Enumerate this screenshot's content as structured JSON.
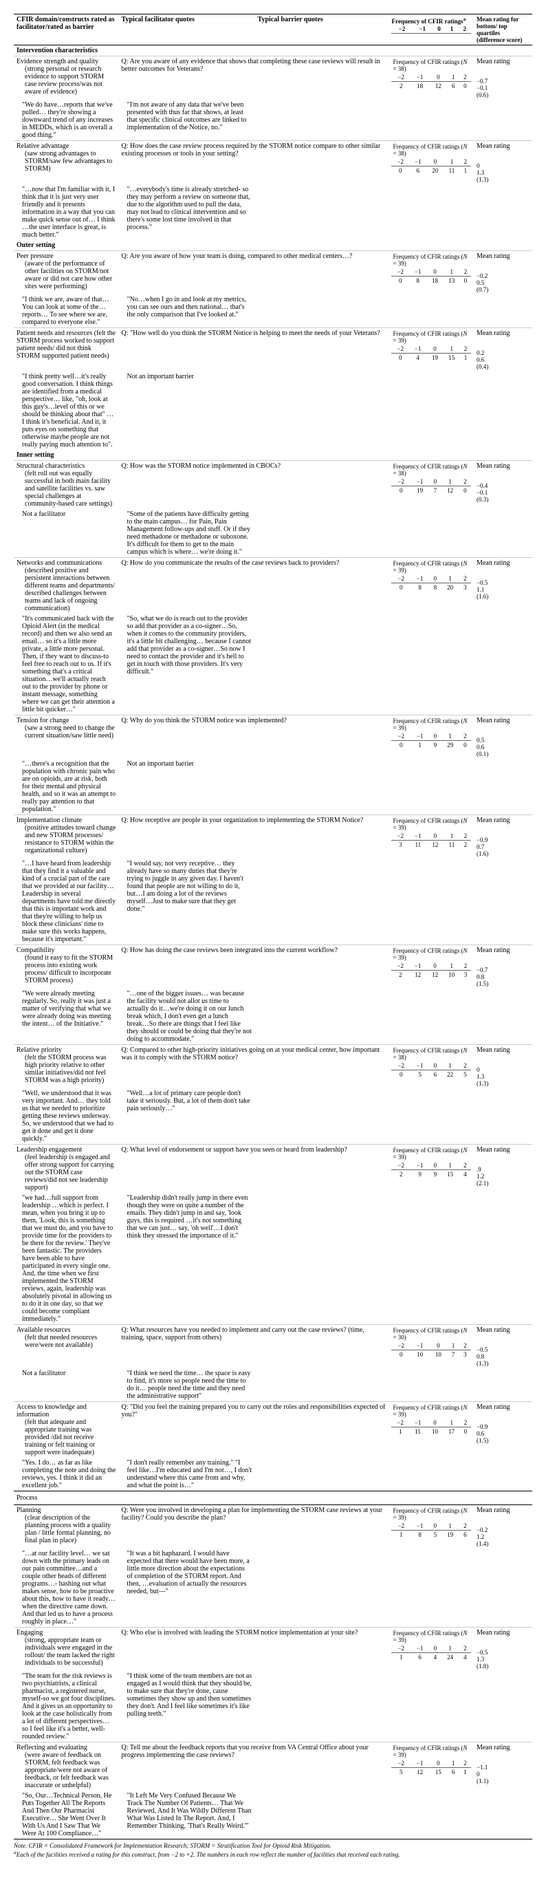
{
  "headers": {
    "c1": "CFIR domain/constructs rated as facilitator/rated as barrier",
    "c2": "Typical facilitator quotes",
    "c3": "Typical barrier quotes",
    "freq_title": "Frequency of CFIR ratings",
    "freq_sup": "a",
    "mean_title": "Mean rating for bottom/ top quartiles (difference score)",
    "scale": [
      "−2",
      "−1",
      "0",
      "1",
      "2"
    ]
  },
  "note": {
    "line1": "Note. CFIR = Consolidated Framework for Implementation Research; STORM = Stratification Tool for Opioid Risk Mitigation.",
    "line2_sup": "a",
    "line2": "Each of the facilities received a rating for this construct, from −2 to +2. The numbers in each row reflect the number of facilities that received each rating."
  },
  "sections": [
    {
      "title": "Intervention characteristics",
      "rows": [
        {
          "name": "Evidence strength and quality",
          "sub": "(strong personal or research evidence to support STORM case review process/was not aware of evidence)",
          "question": "Q: Are you aware of any evidence that shows that completing these case reviews will result in better outcomes for Veterans?",
          "fac": "\"We do have…reports that we've pulled… they're showing a downward trend of any increases in MEDDs, which is an overall a good thing.\"",
          "bar": "\"I'm not aware of any data that we've been presented with thus far that shows, at least that specific clinical outcomes are linked to implementation of the Notice, no.\"",
          "n": 38,
          "freq": [
            2,
            18,
            12,
            6,
            0
          ],
          "means": [
            "−0.7",
            "−0.1",
            "(0.6)"
          ]
        },
        {
          "name": "Relative advantage",
          "sub": "(saw strong advantages to STORM/saw few advantages to STORM)",
          "question": "Q: How does the case review process required by the STORM notice compare to other similar existing processes or tools in your setting?",
          "fac": "\"…now that I'm familiar with it, I think that it is just very user friendly and it presents information in a way that you can make quick sense out of… I think …the user interface is great, is much better.\"",
          "bar": "\"…everybody's time is already stretched- so they may perform a review on someone that, due to the algorithm used to pull the data, may not lead to clinical intervention and so there's some lost time involved in that process.\"",
          "n": 38,
          "freq": [
            0,
            6,
            20,
            11,
            1
          ],
          "means": [
            "0",
            "1.3",
            "(1.3)"
          ]
        }
      ]
    },
    {
      "title": "Outer setting",
      "rows": [
        {
          "name": "Peer pressure",
          "sub": "(aware of the performance of other facilities on STORM/not aware or did not care how other sites were performing)",
          "question": "Q: Are you aware of how your team is doing, compared to other medical centers…?",
          "fac": "\"I think we are, aware of that… You can look at some of the… reports… To see where we are, compared to everyone else.\"",
          "bar": "\"No…when I go in and look at my metrics, you can see ours and then national… that's the only comparison that I've looked at.\"",
          "n": 39,
          "freq": [
            0,
            8,
            18,
            13,
            0
          ],
          "means": [
            "−0.2",
            "0.5",
            "(0.7)"
          ]
        },
        {
          "name": "Patient needs and resources (felt the STORM process worked to support patient needs/ did not think STORM supported patient needs)",
          "sub": "",
          "question": "Q: \"How well do you think the STORM Notice is helping to meet the needs of your Veterans?",
          "fac": "\"I think pretty well…it's really good conversation. I think things are identified from a medical perspective… like, \"oh, look at this guy's…level of this or we should be thinking about that\" …I think it's beneficial. And it, it puts eyes on something that otherwise maybe people are not really paying much attention to\".",
          "bar": "Not an important barrier",
          "n": 39,
          "freq": [
            0,
            4,
            19,
            15,
            1
          ],
          "means": [
            "0.2",
            "0.6",
            "(0.4)"
          ]
        }
      ]
    },
    {
      "title": "Inner setting",
      "rows": [
        {
          "name": "Structural characteristics",
          "sub": "(felt roll out was equally successful in both main facility and satellite facilities vs. saw special challenges at community-based care settings)",
          "question": "Q: How was the STORM notice implemented in CBOCs?",
          "fac": "Not a facilitator",
          "bar": "\"Some of the patients have difficulty getting to the main campus… for Pain, Pain Management follow-ups and stuff. Or if they need methadone or methadone or suboxone. It's difficult for them to get to the main campus which is where… we're doing it.\"",
          "n": 38,
          "freq": [
            0,
            19,
            7,
            12,
            0
          ],
          "means": [
            "−0.4",
            "−0.1",
            "(0.3)"
          ]
        },
        {
          "name": "Networks and communications",
          "sub": "(described positive and persistent interactions between different teams and departments/ described challenges between teams and lack of ongoing communication)",
          "question": "Q: How do you communicate the results of the case reviews back to providers?",
          "fac": "\"It's communicated back with the Opioid Alert (in the medical record) and then we also send an email… so it's a little more private, a little more personal. Then, if they want to discuss-to feel free to reach out to us. If it's something that's a critical situation…we'll actually reach out to the provider by phone or instant message, something where we can get their attention a little bit quicker…\"",
          "bar": "\"So, what we do is reach out to the provider so add that provider as a co-signer…So, when it comes to the community providers, it's a little bit challenging… because I cannot add that provider as a co-signer…So now I need to contact the provider and it's hell to get in touch with those providers. It's very difficult.\"",
          "n": 39,
          "freq": [
            0,
            8,
            8,
            20,
            3
          ],
          "means": [
            "−0.5",
            "1.1",
            "(1.6)"
          ]
        },
        {
          "name": "Tension for change",
          "sub": "(saw a strong need to change the current situation/saw little need)",
          "question": "Q: Why do you think the STORM notice was implemented?",
          "fac": "\"…there's a recognition that the population with chronic pain who are on opioids, are at risk, both for their mental and physical health, and so it was an attempt to really pay attention to that population.\"",
          "bar": "Not an important barrier",
          "n": 39,
          "freq": [
            0,
            1,
            9,
            29,
            0
          ],
          "means": [
            "0.5",
            "0.6",
            "(0.1)"
          ]
        },
        {
          "name": "Implementation climate",
          "sub": "(positive attitudes toward change and new STORM processes/ resistance to STORM within the organizational culture)",
          "question": "Q: How receptive are people in your organization to implementing the STORM Notice?",
          "fac": "\"…I have heard from leadership that they find it a valuable and kind of a crucial part of the care that we provided at our facility… Leadership in several departments have told me directly that this is important work and that they're willing to help us block these clinicians' time to make sure this works happens, because it's important.\"",
          "bar": "\"I would say, not very receptive… they already have so many duties that they're trying to juggle in any given day. I haven't found that people are not willing to do it, but…I am doing a lot of the reviews myself…Just to make sure that they get done.\"",
          "n": 39,
          "freq": [
            3,
            11,
            12,
            11,
            2
          ],
          "means": [
            "−0.9",
            "0.7",
            "(1.6)"
          ]
        },
        {
          "name": "Compatibility",
          "sub": "(found it easy to fit the STORM process into existing work process/ difficult to incorporate STORM process)",
          "question": "Q: How has doing the case reviews been integrated into the current workflow?",
          "fac": "\"We were already meeting regularly. So, really it was just a matter of verifying that what we were already doing was meeting the intent… of the Initiative.\"",
          "bar": "\"…one of the bigger issues… was because the facility would not allot us time to actually do it…we're doing it on our lunch break which, I don't even get a lunch break…So there are things that I feel like they should or could be doing that they're not doing to accommodate.\"",
          "n": 39,
          "freq": [
            2,
            12,
            12,
            10,
            3
          ],
          "means": [
            "−0.7",
            "0.8",
            "(1.5)"
          ]
        },
        {
          "name": "Relative priority",
          "sub": "(felt the STORM process was high priority relative to other similar initiatives/did not feel STORM was a high priority)",
          "question": "Q: Compared to other high-priority initiatives going on at your medical center, how important was it to comply with the STORM notice?",
          "fac": "\"Well, we understood that it was very important. And… they told us that we needed to prioritize getting these reviews underway. So, we understood that we had to get it done and get it done quickly.\"",
          "bar": "\"Well…a lot of primary care people don't take it seriously. But, a lot of them don't take pain seriously…\"",
          "n": 38,
          "freq": [
            0,
            5,
            6,
            22,
            5
          ],
          "means": [
            "0",
            "1.3",
            "(1.3)"
          ]
        },
        {
          "name": "Leadership engagement",
          "sub": "(feel leadership is engaged and offer strong support for carrying out the STORM case reviews/did not see leadership support)",
          "question": "Q: What level of endorsement or support have you seen or heard from leadership?",
          "fac": "\"we had…full support from leadership …which is perfect. I mean, when you bring it up to them, 'Look, this is something that we must do, and you have to provide time for the providers to be there for the review.' They've been fantastic. The providers have been able to have participated in every single one. And, the time when we first implemented the STORM reviews, again, leadership was absolutely pivotal in allowing us to do it in one day, so that we could become compliant immediately.\"",
          "bar": "\"Leadership didn't really jump in there even though they were on quite a number of the emails. They didn't jump in and say, 'look guys, this is required …it's not something that we can just… say, 'oh well'…I don't think they stressed the importance of it.\"",
          "n": 39,
          "freq": [
            2,
            9,
            9,
            15,
            4
          ],
          "means": [
            ".9",
            "1.2",
            "(2.1)"
          ]
        },
        {
          "name": "Available resources",
          "sub": "(felt that needed resources were/were not available)",
          "question": "Q: What resources have you needed to implement and carry out the case reviews? (time, training, space, support from others)",
          "fac": "Not a facilitator",
          "bar": "\"I think we need the time… the space is easy to find, it's more so people need the time to do it… people need the time and they need the administrative support\"",
          "n": 30,
          "freq": [
            0,
            10,
            10,
            7,
            3
          ],
          "means": [
            "−0.5",
            "0.8",
            "(1.3)"
          ]
        },
        {
          "name": "Access to knowledge and information",
          "sub": "(felt that adequate and appropriate training was provided /did not receive training or felt training or support were inadequate)",
          "question": "Q: \"Did you feel the training prepared you to carry out the roles and responsibilities expected of you?\"",
          "fac": "\"Yes. I do… as far as like completing the note and doing the reviews, yes. I think it did an excellent job.\"",
          "bar": "\"I don't really remember any training.\" \"I feel like…I'm educated and I'm not…, I don't understand where this came from and why, and what the point is…\"",
          "n": 39,
          "freq": [
            1,
            11,
            10,
            17,
            0
          ],
          "means": [
            "−0.9",
            "0.6",
            "(1.5)"
          ]
        }
      ]
    },
    {
      "title": "Process",
      "process": true,
      "rows": [
        {
          "name": "Planning",
          "sub": "(clear description of the planning process with a quality plan / little formal planning, no final plan in place)",
          "question": "Q: Were you involved in developing a plan for implementing the STORM case reviews at your facility? Could you describe the plan?",
          "fac": "\"…at our facility level… we sat down with the primary leads on our pain committee…and a couple other heads of different programs…- hashing out what makes sense, how to be proactive about this, how to have it ready…when the directive came down. And that led us to have a process roughly in place…\"",
          "bar": "\"It was a bit haphazard. I would have expected that there would have been more, a little more direction about the expectations of completion of the STORM report. And then, …evaluation of actually the resources needed, but—\"",
          "n": 39,
          "freq": [
            1,
            8,
            5,
            19,
            6
          ],
          "means": [
            "−0.2",
            "1.2",
            "(1.4)"
          ]
        },
        {
          "name": "Engaging",
          "sub": "(strong, appropriate team or individuals were engaged in the rollout/ the team lacked the right individuals to be successful)",
          "question": "Q: Who else is involved with leading the STORM notice implementation at your site?",
          "fac": "\"The team for the risk reviews is two psychiatrists, a clinical pharmacist, a registered nurse, myself-so we got four disciplines. And it gives us an opportunity to look at the case holistically from a lot of different perspectives… so I feel like it's a better, well-rounded review.\"",
          "bar": "\"I think some of the team members are not as engaged as I would think that they should be, to make sure that they're done, cause sometimes they show up and then sometimes they don't. And I feel like sometimes it's like pulling teeth.\"",
          "n": 39,
          "freq": [
            1,
            6,
            4,
            24,
            4
          ],
          "means": [
            "−0.5",
            "1.3",
            "(1.8)"
          ]
        },
        {
          "name": "Reflecting and evaluating",
          "sub": "(were aware of feedback on STORM, felt feedback was appropriate/were not aware of feedback, or felt feedback was inaccurate or unhelpful)",
          "question": "Q: Tell me about the feedback reports that you receive from VA Central Office about your progress implementing the case reviews?",
          "fac": "\"So, Our…Technical Person, He Puts Together All The Reports And Then Our Pharmacist Executive… She Went Over It With Us And I Saw That We Were At 100 Compliance…\"",
          "bar": "\"It Left Me Very Confused Because We Track The Number Of Patients… That We Reviewed, And It Was Wildly Different Than What Was Listed In The Report. And, I Remember Thinking, 'That's Really Weird.'\"",
          "n": 39,
          "freq": [
            5,
            12,
            15,
            6,
            1
          ],
          "means": [
            "−1.1",
            "0",
            "(1.1)"
          ]
        }
      ]
    }
  ]
}
